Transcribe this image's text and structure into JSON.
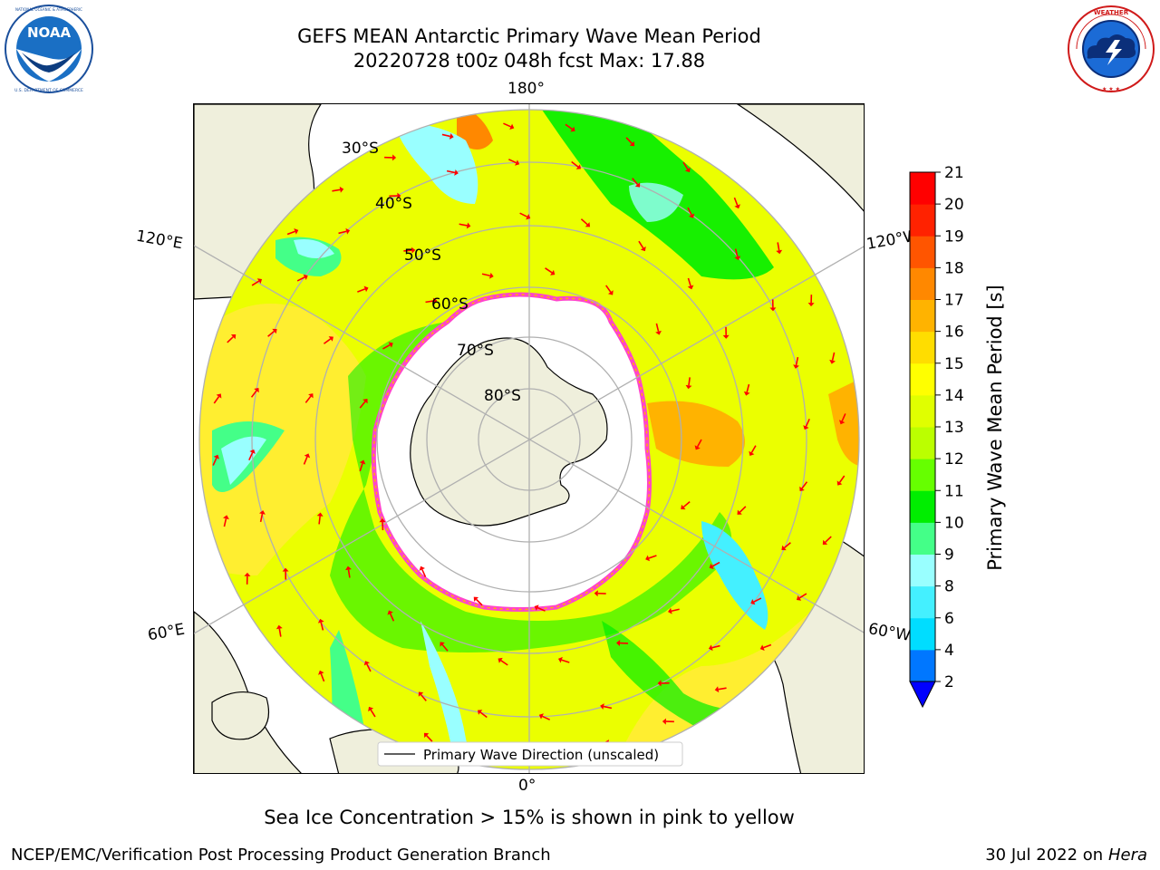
{
  "title": {
    "line1": "GEFS MEAN Antarctic Primary Wave Mean Period",
    "line2": "20220728 t00z 048h fcst   Max: 17.88"
  },
  "logos": {
    "left": {
      "text": "NOAA",
      "ring_text": "NATIONAL OCEANIC AND ATMOSPHERIC ADMINISTRATION · U.S. DEPARTMENT OF COMMERCE",
      "icon": "noaa-logo"
    },
    "right": {
      "ring_text": "NATIONAL WEATHER SERVICE",
      "icon": "nws-logo"
    }
  },
  "map": {
    "projection": "south-polar-stereographic",
    "longitude_labels": {
      "top": "180°",
      "bottom": "0°",
      "left_upper": "120°E",
      "left_lower": "60°E",
      "right_upper": "120°W",
      "right_lower": "60°W"
    },
    "latitude_labels": [
      "30°S",
      "40°S",
      "50°S",
      "60°S",
      "70°S",
      "80°S"
    ],
    "legend": "Primary Wave Direction (unscaled)",
    "colors": {
      "land": "#efefdc",
      "ice": "#ffffff",
      "ice_edge": "#ff44cc",
      "graticule": "#b0b0b0",
      "arrow": "#ff0000"
    }
  },
  "colorbar": {
    "label": "Primary Wave Mean Period [s]",
    "ticks": [
      "2",
      "4",
      "6",
      "8",
      "9",
      "10",
      "11",
      "12",
      "13",
      "14",
      "15",
      "16",
      "17",
      "18",
      "19",
      "20",
      "21"
    ],
    "colors": [
      "#0000ff",
      "#0077ff",
      "#00ddff",
      "#44f0ff",
      "#99ffff",
      "#44ff88",
      "#00ee00",
      "#66ff00",
      "#bbff00",
      "#e0ff00",
      "#ffff00",
      "#ffdd00",
      "#ffb300",
      "#ff8800",
      "#ff5500",
      "#ff2200",
      "#ff0000"
    ]
  },
  "footer": {
    "note": "Sea Ice Concentration > 15% is shown in pink to yellow",
    "credit": "NCEP/EMC/Verification Post Processing Product Generation Branch",
    "date": "30 Jul 2022 on ",
    "machine": "Hera"
  }
}
